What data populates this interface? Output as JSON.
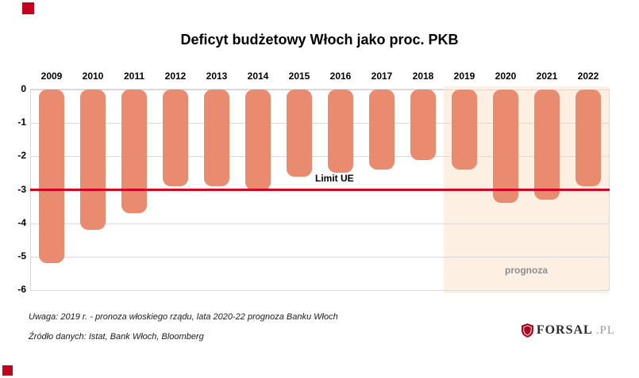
{
  "page": {
    "title": "Deficyt budżetowy Włoch jako proc. PKB",
    "note1": "Uwaga:  2019 r. - pronoza włoskiego rządu, lata 2020-22 prognoza Banku Włoch",
    "note2": "Źródło danych:  Istat, Bank Włoch, Bloomberg",
    "logo_text": "FORSAL",
    "logo_suffix": ".PL"
  },
  "chart_data": {
    "type": "bar",
    "title": "Deficyt budżetowy Włoch jako proc. PKB",
    "categories": [
      "2009",
      "2010",
      "2011",
      "2012",
      "2013",
      "2014",
      "2015",
      "2016",
      "2017",
      "2018",
      "2019",
      "2020",
      "2021",
      "2022"
    ],
    "values": [
      -5.2,
      -4.2,
      -3.7,
      -2.9,
      -2.9,
      -3.0,
      -2.6,
      -2.5,
      -2.4,
      -2.1,
      -2.4,
      -3.4,
      -3.3,
      -2.9
    ],
    "xlabel": "",
    "ylabel": "",
    "ylim": [
      -6,
      0
    ],
    "yticks": [
      0,
      -1,
      -2,
      -3,
      -4,
      -5,
      -6
    ],
    "grid": true,
    "legend": "none",
    "bar_color": "#e98b6f",
    "limit_line": {
      "value": -3,
      "label": "Limit UE",
      "color": "#d40022"
    },
    "forecast": {
      "start_category": "2019",
      "label": "prognoza",
      "fill": "#fdf0e3"
    }
  }
}
